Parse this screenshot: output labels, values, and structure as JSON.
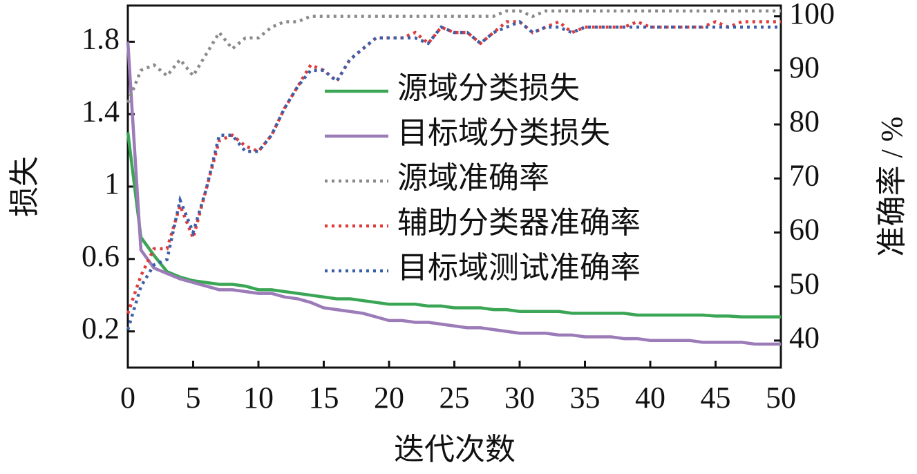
{
  "chart_data": {
    "type": "line",
    "xlabel": "迭代次数",
    "ylabel": "损失",
    "y2label": "准确率 / %",
    "x": [
      0,
      1,
      2,
      3,
      4,
      5,
      6,
      7,
      8,
      9,
      10,
      11,
      12,
      13,
      14,
      15,
      16,
      17,
      18,
      19,
      20,
      21,
      22,
      23,
      24,
      25,
      26,
      27,
      28,
      29,
      30,
      31,
      32,
      33,
      34,
      35,
      36,
      37,
      38,
      39,
      40,
      41,
      42,
      43,
      44,
      45,
      46,
      47,
      48,
      49,
      50
    ],
    "xlim": [
      0,
      50
    ],
    "xticks": [
      0,
      5,
      10,
      15,
      20,
      25,
      30,
      35,
      40,
      45,
      50
    ],
    "ylim": [
      0,
      2.0
    ],
    "yticks": [
      0.2,
      0.6,
      1.0,
      1.4,
      1.8
    ],
    "y2lim": [
      35,
      102
    ],
    "y2ticks": [
      40,
      50,
      60,
      70,
      80,
      90,
      100
    ],
    "legend": "upper center",
    "series": [
      {
        "name": "源域分类损失",
        "color": "#3aa655",
        "dash": "solid",
        "values": [
          1.3,
          0.72,
          0.62,
          0.53,
          0.5,
          0.48,
          0.47,
          0.46,
          0.46,
          0.45,
          0.43,
          0.43,
          0.42,
          0.41,
          0.4,
          0.39,
          0.38,
          0.38,
          0.37,
          0.36,
          0.35,
          0.35,
          0.35,
          0.34,
          0.34,
          0.33,
          0.33,
          0.33,
          0.32,
          0.32,
          0.31,
          0.31,
          0.31,
          0.31,
          0.3,
          0.3,
          0.3,
          0.3,
          0.3,
          0.29,
          0.29,
          0.29,
          0.29,
          0.29,
          0.29,
          0.285,
          0.285,
          0.28,
          0.28,
          0.28,
          0.28
        ]
      },
      {
        "name": "目标域分类损失",
        "color": "#9b7bb8",
        "dash": "solid",
        "values": [
          1.8,
          0.65,
          0.55,
          0.52,
          0.49,
          0.47,
          0.45,
          0.43,
          0.43,
          0.42,
          0.41,
          0.41,
          0.39,
          0.38,
          0.36,
          0.33,
          0.32,
          0.31,
          0.3,
          0.28,
          0.26,
          0.26,
          0.25,
          0.25,
          0.24,
          0.23,
          0.22,
          0.22,
          0.21,
          0.2,
          0.19,
          0.19,
          0.19,
          0.18,
          0.18,
          0.17,
          0.17,
          0.17,
          0.16,
          0.16,
          0.15,
          0.15,
          0.15,
          0.15,
          0.14,
          0.14,
          0.14,
          0.14,
          0.13,
          0.13,
          0.13
        ]
      },
      {
        "name": "源域准确率",
        "color": "#8a8a8a",
        "dash": "dotted",
        "axis": "y2",
        "values": [
          84,
          90,
          91,
          89,
          92,
          89,
          93,
          97,
          94,
          96,
          96,
          98,
          99,
          99,
          100,
          100,
          100,
          100,
          100,
          100,
          100,
          100,
          100,
          100,
          100,
          100,
          100,
          100,
          100,
          101,
          101,
          100,
          101,
          101,
          101,
          101,
          101,
          101,
          101,
          101,
          101,
          101,
          101,
          101,
          101,
          101,
          101,
          101,
          101,
          101,
          101
        ]
      },
      {
        "name": "辅助分类器准确率",
        "color": "#e03a3a",
        "dash": "dotted",
        "axis": "y2",
        "values": [
          45,
          52,
          57,
          57,
          65,
          59,
          68,
          77,
          78,
          76,
          75,
          78,
          83,
          87,
          91,
          90,
          88,
          92,
          94,
          96,
          96,
          96,
          97,
          95,
          98,
          97,
          97,
          95,
          97,
          99,
          99,
          97,
          98,
          99,
          97,
          98,
          98,
          98,
          98,
          99,
          98,
          98,
          98,
          98,
          98,
          99,
          98,
          99,
          99,
          99,
          99
        ]
      },
      {
        "name": "目标域测试准确率",
        "color": "#3b5fa8",
        "dash": "dotted",
        "axis": "y2",
        "values": [
          42,
          50,
          54,
          55,
          66,
          60,
          68,
          78,
          78,
          75,
          75,
          78,
          83,
          87,
          90,
          90,
          88,
          92,
          94,
          96,
          96,
          96,
          96,
          95,
          98,
          97,
          97,
          95,
          97,
          98,
          99,
          97,
          98,
          98,
          97,
          98,
          98,
          98,
          98,
          98,
          98,
          98,
          98,
          98,
          98,
          98,
          98,
          98,
          98,
          98,
          98
        ]
      }
    ]
  }
}
